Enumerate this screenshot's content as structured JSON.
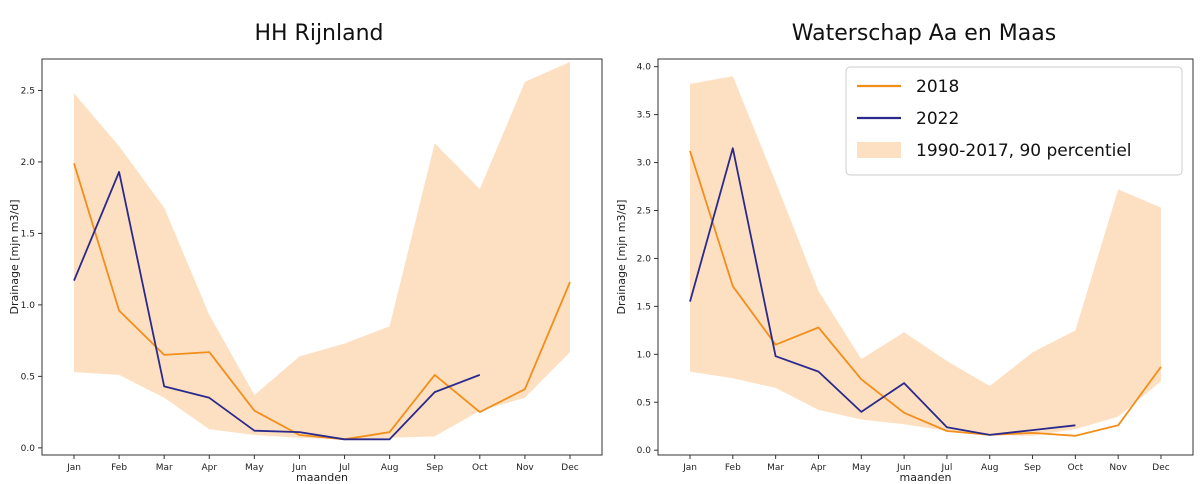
{
  "chart_data": [
    {
      "type": "line",
      "title": "HH Rijnland",
      "xlabel": "maanden",
      "ylabel": "Drainage [mjn m3/d]",
      "categories": [
        "Jan",
        "Feb",
        "Mar",
        "Apr",
        "May",
        "Jun",
        "Jul",
        "Aug",
        "Sep",
        "Oct",
        "Nov",
        "Dec"
      ],
      "ylim": [
        -0.05,
        2.72
      ],
      "yticks": [
        "0.0",
        "0.5",
        "1.0",
        "1.5",
        "2.0",
        "2.5"
      ],
      "series": [
        {
          "name": "2018",
          "color": "#f28e1c",
          "values": [
            1.99,
            0.96,
            0.65,
            0.67,
            0.26,
            0.09,
            0.06,
            0.11,
            0.51,
            0.25,
            0.41,
            1.16
          ]
        },
        {
          "name": "2022",
          "color": "#2b2a8c",
          "values": [
            1.17,
            1.93,
            0.43,
            0.35,
            0.12,
            0.11,
            0.06,
            0.06,
            0.39,
            0.51,
            null,
            null
          ]
        }
      ],
      "band": {
        "name": "1990-2017, 90 percentiel",
        "color": "#fde0c2",
        "lower": [
          0.53,
          0.51,
          0.35,
          0.13,
          0.09,
          0.07,
          0.06,
          0.07,
          0.08,
          0.26,
          0.35,
          0.67
        ],
        "upper": [
          2.48,
          2.11,
          1.68,
          0.93,
          0.37,
          0.64,
          0.73,
          0.85,
          2.13,
          1.81,
          2.56,
          2.7
        ]
      },
      "legend": false,
      "grid": false
    },
    {
      "type": "line",
      "title": "Waterschap Aa en Maas",
      "xlabel": "maanden",
      "ylabel": "Drainage [mjn m3/d]",
      "categories": [
        "Jan",
        "Feb",
        "Mar",
        "Apr",
        "May",
        "Jun",
        "Jul",
        "Aug",
        "Sep",
        "Oct",
        "Nov",
        "Dec"
      ],
      "ylim": [
        -0.05,
        4.08
      ],
      "yticks": [
        "0.0",
        "0.5",
        "1.0",
        "1.5",
        "2.0",
        "2.5",
        "3.0",
        "3.5",
        "4.0"
      ],
      "series": [
        {
          "name": "2018",
          "color": "#f28e1c",
          "values": [
            3.12,
            1.71,
            1.1,
            1.28,
            0.74,
            0.39,
            0.2,
            0.16,
            0.18,
            0.15,
            0.26,
            0.87
          ]
        },
        {
          "name": "2022",
          "color": "#2b2a8c",
          "values": [
            1.55,
            3.15,
            0.98,
            0.82,
            0.4,
            0.7,
            0.24,
            0.16,
            0.21,
            0.26,
            null,
            null
          ]
        }
      ],
      "band": {
        "name": "1990-2017, 90 percentiel",
        "color": "#fde0c2",
        "lower": [
          0.82,
          0.75,
          0.65,
          0.42,
          0.32,
          0.27,
          0.2,
          0.16,
          0.15,
          0.22,
          0.35,
          0.72
        ],
        "upper": [
          3.82,
          3.9,
          2.8,
          1.66,
          0.95,
          1.23,
          0.93,
          0.67,
          1.02,
          1.25,
          2.72,
          2.53
        ]
      },
      "legend": true,
      "legend_position": "top-right",
      "grid": false
    }
  ]
}
